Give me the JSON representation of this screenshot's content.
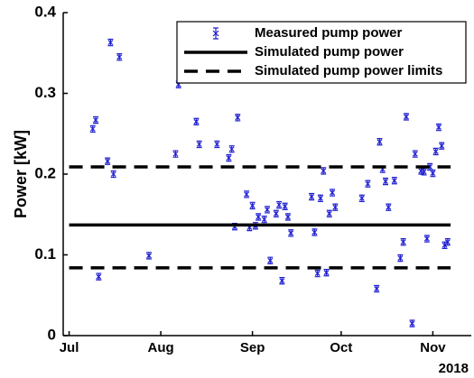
{
  "chart_data": {
    "type": "scatter",
    "ylabel": "Power [kW]",
    "xlabel": "2018",
    "xlim": [
      "2018-06-29",
      "2018-11-14"
    ],
    "xticks": [
      {
        "value": "2018-07-01",
        "label": "Jul"
      },
      {
        "value": "2018-08-01",
        "label": "Aug"
      },
      {
        "value": "2018-09-01",
        "label": "Sep"
      },
      {
        "value": "2018-10-01",
        "label": "Oct"
      },
      {
        "value": "2018-11-01",
        "label": "Nov"
      }
    ],
    "ylim": [
      0,
      0.4
    ],
    "yticks": [
      0,
      0.1,
      0.2,
      0.3,
      0.4
    ],
    "legend": "upper right",
    "series": [
      {
        "name": "Measured pump power",
        "color": "#1f1fd0",
        "style": "errorbar",
        "error": 0.004,
        "x": [
          "2018-07-09",
          "2018-07-10",
          "2018-07-11",
          "2018-07-14",
          "2018-07-15",
          "2018-07-16",
          "2018-07-18",
          "2018-07-28",
          "2018-08-06",
          "2018-08-07",
          "2018-08-13",
          "2018-08-14",
          "2018-08-20",
          "2018-08-24",
          "2018-08-25",
          "2018-08-26",
          "2018-08-27",
          "2018-08-30",
          "2018-08-31",
          "2018-09-01",
          "2018-09-02",
          "2018-09-03",
          "2018-09-05",
          "2018-09-06",
          "2018-09-07",
          "2018-09-09",
          "2018-09-10",
          "2018-09-11",
          "2018-09-12",
          "2018-09-13",
          "2018-09-14",
          "2018-09-21",
          "2018-09-22",
          "2018-09-23",
          "2018-09-24",
          "2018-09-25",
          "2018-09-26",
          "2018-09-27",
          "2018-09-28",
          "2018-09-29",
          "2018-10-08",
          "2018-10-10",
          "2018-10-13",
          "2018-10-14",
          "2018-10-15",
          "2018-10-16",
          "2018-10-17",
          "2018-10-19",
          "2018-10-21",
          "2018-10-22",
          "2018-10-23",
          "2018-10-25",
          "2018-10-26",
          "2018-10-28",
          "2018-10-29",
          "2018-10-30",
          "2018-10-31",
          "2018-11-01",
          "2018-11-02",
          "2018-11-03",
          "2018-11-04",
          "2018-11-05",
          "2018-11-06"
        ],
        "values": [
          0.256,
          0.267,
          0.073,
          0.216,
          0.363,
          0.2,
          0.345,
          0.099,
          0.225,
          0.311,
          0.265,
          0.237,
          0.237,
          0.22,
          0.231,
          0.135,
          0.27,
          0.175,
          0.134,
          0.161,
          0.136,
          0.147,
          0.144,
          0.156,
          0.093,
          0.151,
          0.162,
          0.068,
          0.16,
          0.147,
          0.127,
          0.172,
          0.128,
          0.077,
          0.17,
          0.204,
          0.078,
          0.151,
          0.177,
          0.159,
          0.17,
          0.188,
          0.058,
          0.24,
          0.206,
          0.191,
          0.159,
          0.192,
          0.096,
          0.116,
          0.271,
          0.015,
          0.225,
          0.204,
          0.203,
          0.12,
          0.209,
          0.201,
          0.228,
          0.258,
          0.235,
          0.112,
          0.116
        ]
      },
      {
        "name": "Simulated pump power",
        "color": "#000000",
        "style": "solid",
        "x": [
          "2018-07-01",
          "2018-11-07"
        ],
        "values": [
          0.137,
          0.137
        ]
      },
      {
        "name": "Simulated pump power limits",
        "color": "#000000",
        "style": "dashed",
        "x": [
          "2018-07-01",
          "2018-11-07"
        ],
        "levels": [
          0.209,
          0.084
        ]
      }
    ]
  }
}
